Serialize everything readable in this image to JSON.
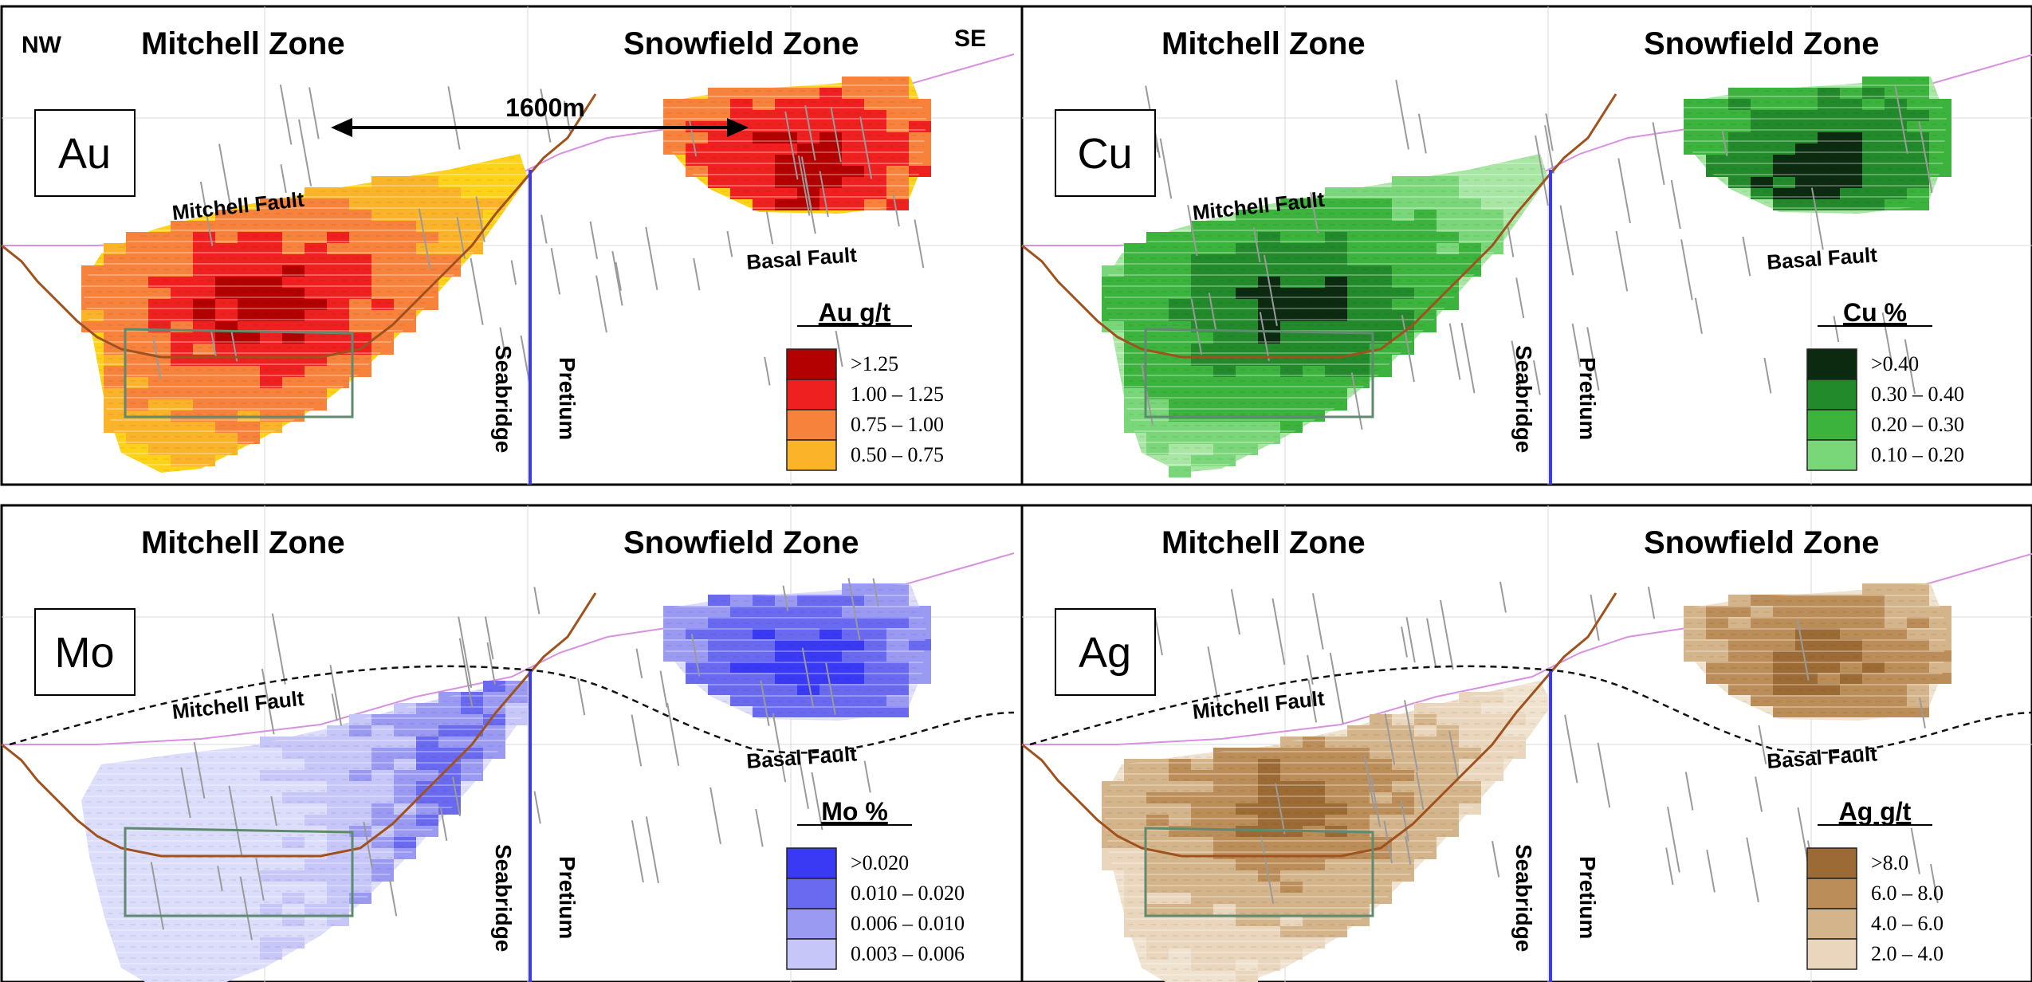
{
  "orientation": {
    "left": "NW",
    "right": "SE"
  },
  "distance_label": "1600m",
  "zones": {
    "mitchell": "Mitchell Zone",
    "snowfield": "Snowfield Zone"
  },
  "faults": {
    "mitchell": "Mitchell Fault",
    "basal": "Basal Fault"
  },
  "property_boundary": {
    "left": "Seabridge",
    "right": "Pretium"
  },
  "colors": {
    "panel_border": "#000000",
    "boundary_line": "#3a3af0",
    "topography": "#d890e0",
    "pit_outline": "#a0521e",
    "underground_box": "#5f8a6f",
    "drillholes": "#9a9a9a",
    "grid": "#d8d8d8"
  },
  "panels": [
    {
      "id": "au",
      "element": "Au",
      "legend_title": "Au g/t",
      "grades": [
        {
          "label": ">1.25",
          "color": "#b30000"
        },
        {
          "label": "1.00 – 1.25",
          "color": "#ee2020"
        },
        {
          "label": "0.75 – 1.00",
          "color": "#f7823c"
        },
        {
          "label": "0.50 – 0.75",
          "color": "#fbb32a"
        }
      ],
      "base_color": "#ffd21a"
    },
    {
      "id": "cu",
      "element": "Cu",
      "legend_title": "Cu %",
      "grades": [
        {
          "label": ">0.40",
          "color": "#0b2a10"
        },
        {
          "label": "0.30 – 0.40",
          "color": "#238a2b"
        },
        {
          "label": "0.20 – 0.30",
          "color": "#3cb33c"
        },
        {
          "label": "0.10 – 0.20",
          "color": "#79d779"
        }
      ],
      "base_color": "#a8e6a3"
    },
    {
      "id": "mo",
      "element": "Mo",
      "legend_title": "Mo %",
      "grades": [
        {
          "label": ">0.020",
          "color": "#3a3af5"
        },
        {
          "label": "0.010 – 0.020",
          "color": "#6a6af0"
        },
        {
          "label": "0.006 – 0.010",
          "color": "#9a9af3"
        },
        {
          "label": "0.003 – 0.006",
          "color": "#c6c6f8"
        }
      ],
      "base_color": "#dcdcfb"
    },
    {
      "id": "ag",
      "element": "Ag",
      "legend_title": "Ag g/t",
      "grades": [
        {
          "label": ">8.0",
          "color": "#9c6b35"
        },
        {
          "label": "6.0 – 8.0",
          "color": "#bb8d59"
        },
        {
          "label": "4.0 – 6.0",
          "color": "#d4b48a"
        },
        {
          "label": "2.0 – 4.0",
          "color": "#e9d6bd"
        }
      ],
      "base_color": "#efe2cf"
    }
  ]
}
